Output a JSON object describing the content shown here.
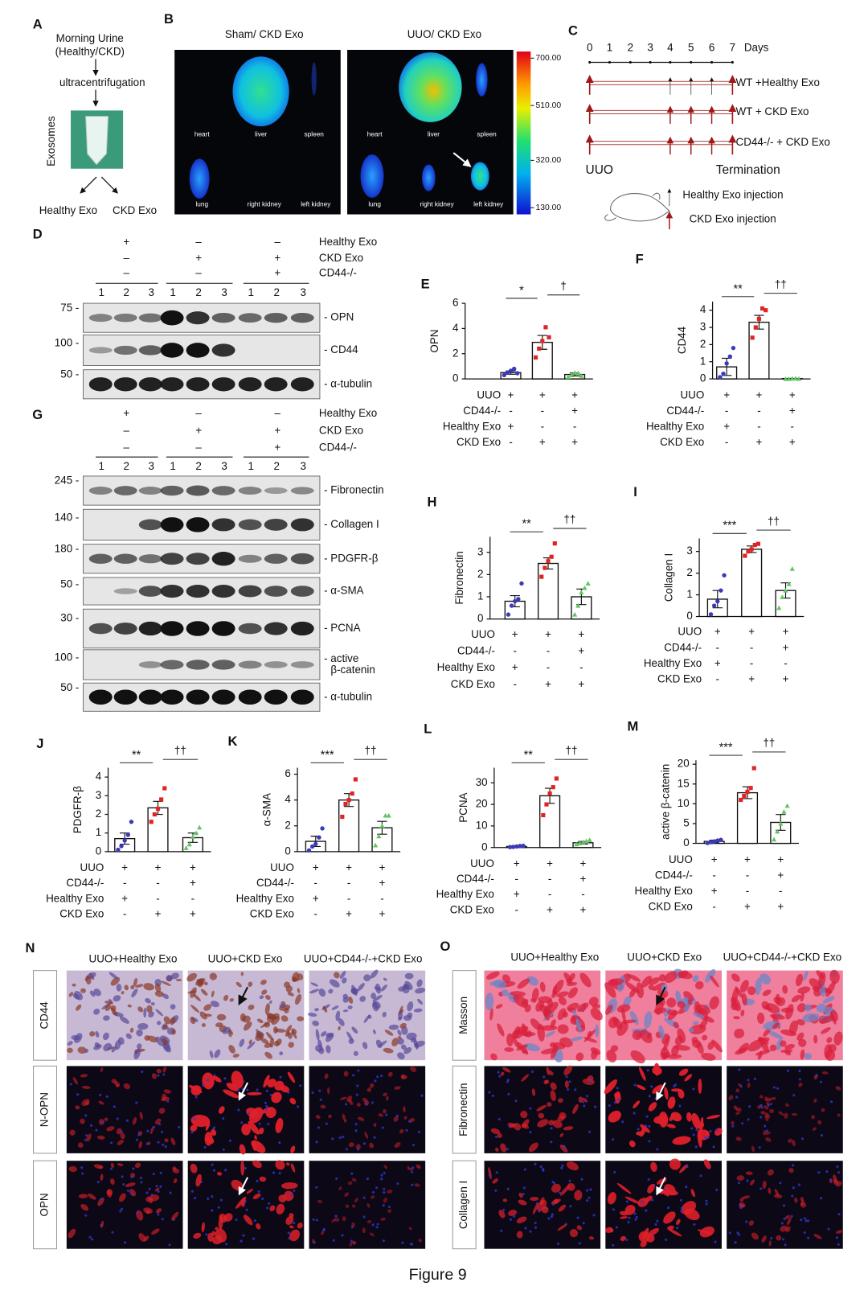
{
  "panel_a": {
    "label": "A",
    "source": [
      "Morning Urine",
      "(Healthy/CKD)"
    ],
    "step": "ultracentrifugation",
    "product": "Exosomes",
    "outputs": [
      "Healthy Exo",
      "CKD Exo"
    ]
  },
  "panel_b": {
    "label": "B",
    "groups": [
      "Sham/ CKD Exo",
      "UUO/ CKD Exo"
    ],
    "organs": [
      "heart",
      "liver",
      "spleen",
      "lung",
      "right kidney",
      "left kidney"
    ],
    "scale": [
      "700.00",
      "510.00",
      "320.00",
      "130.00"
    ]
  },
  "panel_c": {
    "label": "C",
    "days": [
      "0",
      "1",
      "2",
      "3",
      "4",
      "5",
      "6",
      "7"
    ],
    "unit": "Days",
    "groups": [
      "WT +Healthy Exo",
      "WT + CKD Exo",
      "CD44-/- + CKD Exo"
    ],
    "start": "UUO",
    "end": "Termination",
    "legend": [
      "Healthy Exo injection",
      "CKD Exo injection"
    ]
  },
  "blots": [
    {
      "label": "D",
      "conditions": [
        {
          "name": "Healthy Exo",
          "signs": [
            "+",
            "–",
            "–"
          ]
        },
        {
          "name": "CKD Exo",
          "signs": [
            "–",
            "+",
            "+"
          ]
        },
        {
          "name": "CD44-/-",
          "signs": [
            "–",
            "–",
            "+"
          ]
        }
      ],
      "lanes": [
        "1",
        "2",
        "3"
      ],
      "bands": [
        {
          "name": [
            "- OPN"
          ],
          "marker": "75 -"
        },
        {
          "name": [
            "- CD44"
          ],
          "marker": "100 -"
        },
        {
          "name": [
            "- α-tubulin"
          ],
          "marker": "50 -"
        }
      ]
    },
    {
      "label": "G",
      "conditions": [
        {
          "name": "Healthy Exo",
          "signs": [
            "+",
            "–",
            "–"
          ]
        },
        {
          "name": "CKD Exo",
          "signs": [
            "–",
            "+",
            "+"
          ]
        },
        {
          "name": "CD44-/-",
          "signs": [
            "–",
            "–",
            "+"
          ]
        }
      ],
      "lanes": [
        "1",
        "2",
        "3"
      ],
      "bands": [
        {
          "name": [
            "- Fibronectin"
          ],
          "marker": "245 -"
        },
        {
          "name": [
            "- Collagen I"
          ],
          "marker": "140 -"
        },
        {
          "name": [
            "- PDGFR-β"
          ],
          "marker": "180 -"
        },
        {
          "name": [
            "- α-SMA"
          ],
          "marker": "50 -"
        },
        {
          "name": [
            "- PCNA"
          ],
          "marker": "30 -"
        },
        {
          "name": [
            "- active",
            "β-catenin"
          ],
          "marker": "100 -"
        },
        {
          "name": [
            "- α-tubulin"
          ],
          "marker": "50 -"
        }
      ]
    }
  ],
  "micrographs": [
    {
      "label": "N",
      "columns": [
        "UUO+Healthy Exo",
        "UUO+CKD Exo",
        "UUO+CD44-/-+CKD Exo"
      ],
      "rows": [
        "CD44",
        "N-OPN",
        "OPN"
      ]
    },
    {
      "label": "O",
      "columns": [
        "UUO+Healthy Exo",
        "UUO+CKD Exo",
        "UUO+CD44-/-+CKD Exo"
      ],
      "rows": [
        "Masson",
        "Fibronectin",
        "Collagen I"
      ]
    }
  ],
  "caption": "Figure 9",
  "chart_data": [
    {
      "type": "bar",
      "label": "E",
      "ylabel": "OPN",
      "values": [
        0.5,
        2.9,
        0.35
      ],
      "errors": [
        0.13,
        0.55,
        0.12
      ],
      "points": [
        [
          0.3,
          0.5,
          0.65,
          0.8,
          0.45
        ],
        [
          1.7,
          2.4,
          3.0,
          4.1,
          3.3
        ],
        [
          0.15,
          0.3,
          0.5,
          0.45,
          0.25
        ]
      ],
      "colors": [
        "#3a3ab8",
        "#e02424",
        "#63c463"
      ],
      "ylim": [
        0,
        6
      ],
      "yticks": [
        0,
        2,
        4,
        6
      ],
      "rows": [
        "UUO",
        "CD44-/-",
        "Healthy Exo",
        "CKD Exo"
      ],
      "conditions": [
        [
          "+",
          "+",
          "+"
        ],
        [
          "-",
          "-",
          "+"
        ],
        [
          "+",
          "-",
          "-"
        ],
        [
          "-",
          "+",
          "+"
        ]
      ],
      "significance": [
        "*",
        "†"
      ]
    },
    {
      "type": "bar",
      "label": "F",
      "ylabel": "CD44",
      "values": [
        0.7,
        3.3,
        0.02
      ],
      "errors": [
        0.5,
        0.4,
        0.01
      ],
      "points": [
        [
          0.1,
          0.3,
          0.9,
          1.3,
          1.8
        ],
        [
          2.4,
          3.0,
          3.5,
          4.1,
          4.0
        ],
        [
          0,
          0,
          0.02,
          0.03,
          0.01
        ]
      ],
      "colors": [
        "#3a3ab8",
        "#e02424",
        "#63c463"
      ],
      "ylim": [
        0,
        4.5
      ],
      "yticks": [
        0,
        1,
        2,
        3,
        4
      ],
      "rows": [
        "UUO",
        "CD44-/-",
        "Healthy Exo",
        "CKD Exo"
      ],
      "conditions": [
        [
          "+",
          "+",
          "+"
        ],
        [
          "-",
          "-",
          "+"
        ],
        [
          "+",
          "-",
          "-"
        ],
        [
          "-",
          "+",
          "+"
        ]
      ],
      "significance": [
        "**",
        "††"
      ]
    },
    {
      "type": "bar",
      "label": "H",
      "ylabel": "Fibronectin",
      "values": [
        0.8,
        2.5,
        1.0
      ],
      "errors": [
        0.25,
        0.25,
        0.35
      ],
      "points": [
        [
          0.2,
          0.6,
          0.8,
          0.9,
          1.6
        ],
        [
          1.9,
          2.3,
          2.6,
          2.8,
          3.4
        ],
        [
          0.2,
          0.6,
          1.2,
          1.4,
          1.6
        ]
      ],
      "colors": [
        "#3a3ab8",
        "#e02424",
        "#63c463"
      ],
      "ylim": [
        0,
        3.7
      ],
      "yticks": [
        0,
        1,
        2,
        3
      ],
      "rows": [
        "UUO",
        "CD44-/-",
        "Healthy Exo",
        "CKD Exo"
      ],
      "conditions": [
        [
          "+",
          "+",
          "+"
        ],
        [
          "-",
          "-",
          "+"
        ],
        [
          "+",
          "-",
          "-"
        ],
        [
          "-",
          "+",
          "+"
        ]
      ],
      "significance": [
        "**",
        "††"
      ]
    },
    {
      "type": "bar",
      "label": "I",
      "ylabel": "Collagen I",
      "values": [
        0.8,
        3.1,
        1.2
      ],
      "errors": [
        0.4,
        0.15,
        0.35
      ],
      "points": [
        [
          0.1,
          0.5,
          0.7,
          1.2,
          1.9
        ],
        [
          2.8,
          3.0,
          3.1,
          3.3,
          3.35
        ],
        [
          0.4,
          0.9,
          1.2,
          1.5,
          2.2
        ]
      ],
      "colors": [
        "#3a3ab8",
        "#e02424",
        "#63c463"
      ],
      "ylim": [
        0,
        3.6
      ],
      "yticks": [
        0,
        1,
        2,
        3
      ],
      "rows": [
        "UUO",
        "CD44-/-",
        "Healthy Exo",
        "CKD Exo"
      ],
      "conditions": [
        [
          "+",
          "+",
          "+"
        ],
        [
          "-",
          "-",
          "+"
        ],
        [
          "+",
          "-",
          "-"
        ],
        [
          "-",
          "+",
          "+"
        ]
      ],
      "significance": [
        "***",
        "††"
      ]
    },
    {
      "type": "bar",
      "label": "J",
      "ylabel": "PDGFR-β",
      "values": [
        0.7,
        2.35,
        0.75
      ],
      "errors": [
        0.3,
        0.35,
        0.25
      ],
      "points": [
        [
          0.1,
          0.3,
          0.6,
          0.9,
          1.6
        ],
        [
          1.6,
          2.0,
          2.3,
          2.8,
          3.4
        ],
        [
          0.2,
          0.4,
          0.8,
          1.0,
          1.3
        ]
      ],
      "colors": [
        "#3a3ab8",
        "#e02424",
        "#63c463"
      ],
      "ylim": [
        0,
        4.5
      ],
      "yticks": [
        0,
        1,
        2,
        3,
        4
      ],
      "rows": [
        "UUO",
        "CD44-/-",
        "Healthy Exo",
        "CKD Exo"
      ],
      "conditions": [
        [
          "+",
          "+",
          "+"
        ],
        [
          "-",
          "-",
          "+"
        ],
        [
          "+",
          "-",
          "-"
        ],
        [
          "-",
          "+",
          "+"
        ]
      ],
      "significance": [
        "**",
        "††"
      ]
    },
    {
      "type": "bar",
      "label": "K",
      "ylabel": "α-SMA",
      "values": [
        0.8,
        4.0,
        1.85
      ],
      "errors": [
        0.4,
        0.5,
        0.5
      ],
      "points": [
        [
          0.1,
          0.4,
          0.6,
          1.1,
          1.8
        ],
        [
          2.7,
          3.7,
          4.0,
          4.5,
          5.6
        ],
        [
          0.5,
          1.2,
          2.0,
          2.8,
          2.8
        ]
      ],
      "colors": [
        "#3a3ab8",
        "#e02424",
        "#63c463"
      ],
      "ylim": [
        0,
        6.5
      ],
      "yticks": [
        0,
        2,
        4,
        6
      ],
      "rows": [
        "UUO",
        "CD44-/-",
        "Healthy Exo",
        "CKD Exo"
      ],
      "conditions": [
        [
          "+",
          "+",
          "+"
        ],
        [
          "-",
          "-",
          "+"
        ],
        [
          "+",
          "-",
          "-"
        ],
        [
          "-",
          "+",
          "+"
        ]
      ],
      "significance": [
        "***",
        "††"
      ]
    },
    {
      "type": "bar",
      "label": "L",
      "ylabel": "PCNA",
      "values": [
        0.5,
        24,
        2.2
      ],
      "errors": [
        0.3,
        3.5,
        0.6
      ],
      "points": [
        [
          0.2,
          0.3,
          0.5,
          0.7,
          0.8
        ],
        [
          15,
          20,
          25,
          28,
          32
        ],
        [
          1.5,
          2,
          2.5,
          3,
          3.5
        ]
      ],
      "colors": [
        "#3a3ab8",
        "#e02424",
        "#63c463"
      ],
      "ylim": [
        0,
        37
      ],
      "yticks": [
        0,
        10,
        20,
        30
      ],
      "rows": [
        "UUO",
        "CD44-/-",
        "Healthy Exo",
        "CKD Exo"
      ],
      "conditions": [
        [
          "+",
          "+",
          "+"
        ],
        [
          "-",
          "-",
          "+"
        ],
        [
          "+",
          "-",
          "-"
        ],
        [
          "-",
          "+",
          "+"
        ]
      ],
      "significance": [
        "**",
        "††"
      ]
    },
    {
      "type": "bar",
      "label": "M",
      "ylabel": "active β-catenin",
      "values": [
        0.5,
        12.8,
        5.3
      ],
      "errors": [
        0.3,
        1.5,
        2.0
      ],
      "points": [
        [
          0.1,
          0.3,
          0.5,
          0.7,
          0.9
        ],
        [
          11,
          12,
          13,
          14,
          19
        ],
        [
          1,
          3,
          5,
          8,
          9.5
        ]
      ],
      "colors": [
        "#3a3ab8",
        "#e02424",
        "#63c463"
      ],
      "ylim": [
        0,
        21
      ],
      "yticks": [
        0,
        5,
        10,
        15,
        20
      ],
      "rows": [
        "UUO",
        "CD44-/-",
        "Healthy Exo",
        "CKD Exo"
      ],
      "conditions": [
        [
          "+",
          "+",
          "+"
        ],
        [
          "-",
          "-",
          "+"
        ],
        [
          "+",
          "-",
          "-"
        ],
        [
          "-",
          "+",
          "+"
        ]
      ],
      "significance": [
        "***",
        "††"
      ]
    }
  ]
}
